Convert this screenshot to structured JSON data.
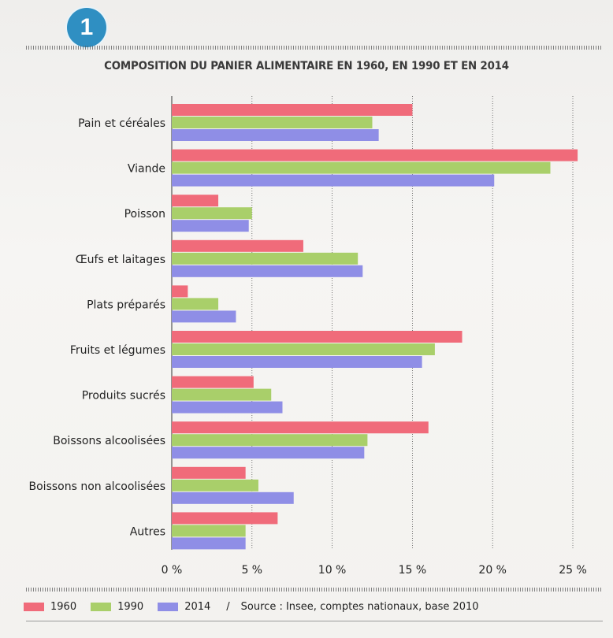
{
  "document": {
    "number": "1",
    "title": "COMPOSITION DU PANIER ALIMENTAIRE EN 1960, EN 1990 ET EN 2014",
    "separator": "/",
    "source": "Source : Insee, comptes nationaux, base 2010"
  },
  "colors": {
    "1960": "#f06b7a",
    "1990": "#a9cf6a",
    "2014": "#8f8ee6",
    "badge": "#2f8fc2"
  },
  "chart_data": {
    "type": "bar",
    "orientation": "horizontal",
    "title": "COMPOSITION DU PANIER ALIMENTAIRE EN 1960, EN 1990 ET EN 2014",
    "categories": [
      "Pain et céréales",
      "Viande",
      "Poisson",
      "Œufs et laitages",
      "Plats préparés",
      "Fruits et légumes",
      "Produits sucrés",
      "Boissons alcoolisées",
      "Boissons non alcoolisées",
      "Autres"
    ],
    "series": [
      {
        "name": "1960",
        "values": [
          15.0,
          25.3,
          2.9,
          8.2,
          1.0,
          18.1,
          5.1,
          16.0,
          4.6,
          6.6
        ]
      },
      {
        "name": "1990",
        "values": [
          12.5,
          23.6,
          5.0,
          11.6,
          2.9,
          16.4,
          6.2,
          12.2,
          5.4,
          4.6
        ]
      },
      {
        "name": "2014",
        "values": [
          12.9,
          20.1,
          4.8,
          11.9,
          4.0,
          15.6,
          6.9,
          12.0,
          7.6,
          4.6
        ]
      }
    ],
    "xlim": [
      0,
      25
    ],
    "xticks": [
      0,
      5,
      10,
      15,
      20,
      25
    ],
    "xtick_labels": [
      "0 %",
      "5 %",
      "10 %",
      "15 %",
      "20 %",
      "25 %"
    ],
    "grid": true,
    "legend_position": "bottom-left"
  }
}
